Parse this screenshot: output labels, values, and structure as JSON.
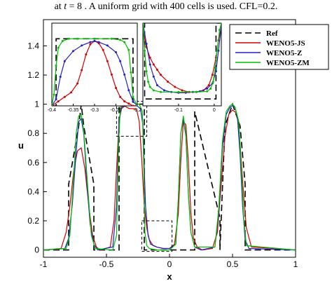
{
  "caption": {
    "pre": "at ",
    "var": "t",
    "post": " = 8 . A uniform grid with 400 cells is used. CFL=0.2."
  },
  "chart_data": [
    {
      "type": "line",
      "panel": "main",
      "xlabel": "x",
      "ylabel": "u",
      "xlim": [
        -1,
        1
      ],
      "ylim": [
        -0.05,
        1.58
      ],
      "xticks": [
        -1,
        -0.5,
        0,
        0.5,
        1
      ],
      "xtick_labels": [
        "-1",
        "-0.5",
        "0",
        "0.5",
        "1"
      ],
      "yticks": [
        0,
        0.2,
        0.4,
        0.6,
        0.8,
        1,
        1.2,
        1.4
      ],
      "ytick_labels": [
        "0",
        "0.2",
        "0.4",
        "0.6",
        "0.8",
        "1",
        "1.2",
        "1.4"
      ],
      "legend_position": "top-right",
      "series": [
        {
          "name": "Ref",
          "color": "#000000",
          "style": "dashed",
          "marker": "none",
          "x": [
            -1,
            -0.8,
            -0.8,
            -0.72,
            -0.7,
            -0.68,
            -0.6,
            -0.6,
            -0.4,
            -0.4,
            -0.36,
            -0.3,
            -0.24,
            -0.2,
            -0.2,
            0,
            0.2,
            0.2,
            0.4,
            0.4,
            0.44,
            0.5,
            0.56,
            0.6,
            0.6,
            1
          ],
          "y": [
            0,
            0,
            0.45,
            0.85,
            1,
            0.85,
            0.45,
            0,
            0,
            1,
            1,
            1,
            1,
            1,
            0,
            0,
            0,
            0.95,
            0.22,
            0,
            0.85,
            1,
            0.85,
            0.45,
            0,
            0
          ]
        },
        {
          "name": "WENO5-JS",
          "color": "#d40000",
          "style": "solid",
          "marker": "dot",
          "x": [
            -1,
            -0.86,
            -0.82,
            -0.79,
            -0.76,
            -0.73,
            -0.7,
            -0.67,
            -0.64,
            -0.61,
            -0.58,
            -0.55,
            -0.47,
            -0.44,
            -0.42,
            -0.4,
            -0.38,
            -0.36,
            -0.34,
            -0.32,
            -0.3,
            -0.28,
            -0.26,
            -0.24,
            -0.22,
            -0.2,
            -0.18,
            -0.16,
            -0.13,
            -0.1,
            -0.05,
            0,
            0.04,
            0.07,
            0.09,
            0.11,
            0.13,
            0.15,
            0.17,
            0.19,
            0.22,
            0.26,
            0.34,
            0.38,
            0.41,
            0.44,
            0.47,
            0.5,
            0.53,
            0.55,
            0.57,
            0.59,
            0.61,
            0.65,
            1
          ],
          "y": [
            0,
            0.01,
            0.12,
            0.3,
            0.54,
            0.68,
            0.7,
            0.55,
            0.3,
            0.1,
            0.02,
            0,
            0.02,
            0.2,
            0.55,
            0.88,
            0.98,
            0.99,
            0.98,
            0.97,
            0.97,
            0.97,
            0.96,
            0.88,
            0.62,
            0.3,
            0.15,
            0.07,
            0.03,
            0.02,
            0.01,
            0.01,
            0.04,
            0.25,
            0.62,
            0.88,
            0.86,
            0.6,
            0.25,
            0.08,
            0.02,
            0,
            0.01,
            0.12,
            0.45,
            0.78,
            0.93,
            0.96,
            0.94,
            0.85,
            0.6,
            0.35,
            0.15,
            0.02,
            0
          ]
        },
        {
          "name": "WENO5-Z",
          "color": "#2020c8",
          "style": "solid",
          "marker": "dot",
          "x": [
            -1,
            -0.83,
            -0.8,
            -0.77,
            -0.74,
            -0.72,
            -0.7,
            -0.68,
            -0.66,
            -0.63,
            -0.6,
            -0.57,
            -0.45,
            -0.42,
            -0.4,
            -0.38,
            -0.35,
            -0.3,
            -0.26,
            -0.23,
            -0.21,
            -0.2,
            -0.19,
            -0.17,
            -0.15,
            -0.1,
            -0.05,
            0,
            0.05,
            0.07,
            0.09,
            0.11,
            0.13,
            0.15,
            0.17,
            0.2,
            0.25,
            0.36,
            0.39,
            0.42,
            0.45,
            0.48,
            0.5,
            0.52,
            0.54,
            0.56,
            0.58,
            0.6,
            0.63,
            1
          ],
          "y": [
            0,
            0.01,
            0.08,
            0.32,
            0.68,
            0.88,
            0.9,
            0.8,
            0.52,
            0.18,
            0.04,
            0,
            0.02,
            0.3,
            0.9,
            0.97,
            0.99,
            1,
            0.99,
            0.97,
            0.85,
            0.55,
            0.3,
            0.1,
            0.04,
            0.02,
            0.01,
            0.01,
            0.04,
            0.35,
            0.8,
            0.9,
            0.78,
            0.38,
            0.12,
            0.02,
            0,
            0.02,
            0.25,
            0.7,
            0.93,
            0.98,
            0.99,
            0.98,
            0.9,
            0.65,
            0.3,
            0.07,
            0.01,
            0
          ]
        },
        {
          "name": "WENO5-ZM",
          "color": "#00c000",
          "style": "solid",
          "marker": "dot",
          "x": [
            -1,
            -0.82,
            -0.79,
            -0.76,
            -0.74,
            -0.72,
            -0.7,
            -0.68,
            -0.65,
            -0.62,
            -0.59,
            -0.45,
            -0.42,
            -0.405,
            -0.39,
            -0.37,
            -0.3,
            -0.24,
            -0.215,
            -0.205,
            -0.195,
            -0.18,
            -0.16,
            -0.1,
            0,
            0.05,
            0.07,
            0.09,
            0.11,
            0.13,
            0.15,
            0.17,
            0.2,
            0.36,
            0.39,
            0.42,
            0.45,
            0.48,
            0.5,
            0.52,
            0.55,
            0.57,
            0.59,
            0.61,
            1
          ],
          "y": [
            0,
            0.01,
            0.1,
            0.5,
            0.8,
            0.92,
            0.93,
            0.82,
            0.45,
            0.1,
            0.01,
            0,
            0.1,
            0.7,
            0.98,
            1,
            1,
            1,
            0.95,
            0.6,
            0.12,
            0.03,
            0.01,
            0,
            0,
            0.04,
            0.35,
            0.8,
            0.92,
            0.8,
            0.38,
            0.12,
            0.02,
            0.02,
            0.28,
            0.75,
            0.95,
            0.99,
            1,
            0.98,
            0.88,
            0.55,
            0.2,
            0.03,
            0
          ]
        }
      ],
      "annotations": [
        "dashed zoom box around x in [-0.42, -0.18], u in [0.78, 1.02]",
        "dashed zoom box around x in [-0.22, 0.02], u in [-0.01, 0.2]"
      ]
    },
    {
      "type": "line",
      "panel": "inset-left",
      "xlim": [
        -0.4,
        -0.2
      ],
      "ylim": [
        0.7,
        1.07
      ],
      "xticks": [
        -0.4,
        -0.35,
        -0.3,
        -0.25,
        -0.2
      ],
      "xtick_labels": [
        "-0.4",
        "-0.35",
        "-0.3",
        "-0.25",
        "-0.2"
      ],
      "series": [
        {
          "name": "Ref",
          "x": [
            -0.4,
            -0.39,
            -0.39,
            -0.21,
            -0.21,
            -0.2
          ],
          "y": [
            0.7,
            0.7,
            1.0,
            1.0,
            0.7,
            0.7
          ]
        },
        {
          "name": "WENO5-JS",
          "x": [
            -0.4,
            -0.385,
            -0.37,
            -0.355,
            -0.34,
            -0.33,
            -0.32,
            -0.31,
            -0.3,
            -0.29,
            -0.28,
            -0.27,
            -0.26,
            -0.25,
            -0.24,
            -0.23,
            -0.22,
            -0.21,
            -0.2
          ],
          "y": [
            0.7,
            0.72,
            0.74,
            0.76,
            0.8,
            0.86,
            0.93,
            0.975,
            0.99,
            0.98,
            0.95,
            0.9,
            0.84,
            0.78,
            0.74,
            0.72,
            0.71,
            0.7,
            0.7
          ]
        },
        {
          "name": "WENO5-Z",
          "x": [
            -0.4,
            -0.39,
            -0.38,
            -0.37,
            -0.35,
            -0.33,
            -0.31,
            -0.3,
            -0.29,
            -0.27,
            -0.25,
            -0.24,
            -0.23,
            -0.22,
            -0.21,
            -0.2
          ],
          "y": [
            0.7,
            0.73,
            0.83,
            0.9,
            0.945,
            0.97,
            0.985,
            0.99,
            0.985,
            0.97,
            0.94,
            0.9,
            0.84,
            0.77,
            0.72,
            0.7
          ]
        },
        {
          "name": "WENO5-ZM",
          "x": [
            -0.4,
            -0.395,
            -0.39,
            -0.385,
            -0.375,
            -0.36,
            -0.34,
            -0.3,
            -0.26,
            -0.24,
            -0.23,
            -0.22,
            -0.215,
            -0.21,
            -0.2
          ],
          "y": [
            0.7,
            0.75,
            0.88,
            0.96,
            0.99,
            1.0,
            1.0,
            1.0,
            1.0,
            0.995,
            0.985,
            0.95,
            0.85,
            0.74,
            0.7
          ]
        }
      ]
    },
    {
      "type": "line",
      "panel": "inset-right",
      "xlim": [
        -0.2,
        0.02
      ],
      "ylim": [
        -0.02,
        0.22
      ],
      "xticks": [
        -0.1,
        0
      ],
      "xtick_labels": [
        "-0.1",
        "0"
      ],
      "series": [
        {
          "name": "Ref",
          "x": [
            -0.2,
            -0.195,
            -0.195,
            0.005,
            0.005,
            0.02
          ],
          "y": [
            0.22,
            0.22,
            0.0,
            0.0,
            0.22,
            0.22
          ]
        },
        {
          "name": "WENO5-JS",
          "x": [
            -0.2,
            -0.19,
            -0.18,
            -0.17,
            -0.16,
            -0.15,
            -0.13,
            -0.11,
            -0.09,
            -0.07,
            -0.05,
            -0.03,
            -0.015,
            -0.005,
            0.005,
            0.012,
            0.02
          ],
          "y": [
            0.2,
            0.15,
            0.12,
            0.1,
            0.085,
            0.07,
            0.05,
            0.035,
            0.025,
            0.02,
            0.02,
            0.025,
            0.04,
            0.07,
            0.12,
            0.17,
            0.21
          ]
        },
        {
          "name": "WENO5-Z",
          "x": [
            -0.2,
            -0.19,
            -0.18,
            -0.17,
            -0.16,
            -0.14,
            -0.12,
            -0.1,
            -0.08,
            -0.06,
            -0.04,
            -0.02,
            -0.005,
            0.005,
            0.012,
            0.02
          ],
          "y": [
            0.22,
            0.16,
            0.1,
            0.065,
            0.04,
            0.025,
            0.02,
            0.018,
            0.018,
            0.02,
            0.022,
            0.03,
            0.045,
            0.08,
            0.14,
            0.21
          ]
        },
        {
          "name": "WENO5-ZM",
          "x": [
            -0.2,
            -0.195,
            -0.19,
            -0.185,
            -0.18,
            -0.17,
            -0.15,
            -0.1,
            -0.05,
            -0.02,
            -0.01,
            -0.003,
            0.003,
            0.008,
            0.015,
            0.02
          ],
          "y": [
            0.22,
            0.14,
            0.08,
            0.05,
            0.035,
            0.025,
            0.02,
            0.02,
            0.02,
            0.022,
            0.03,
            0.05,
            0.09,
            0.14,
            0.2,
            0.22
          ]
        }
      ]
    }
  ]
}
